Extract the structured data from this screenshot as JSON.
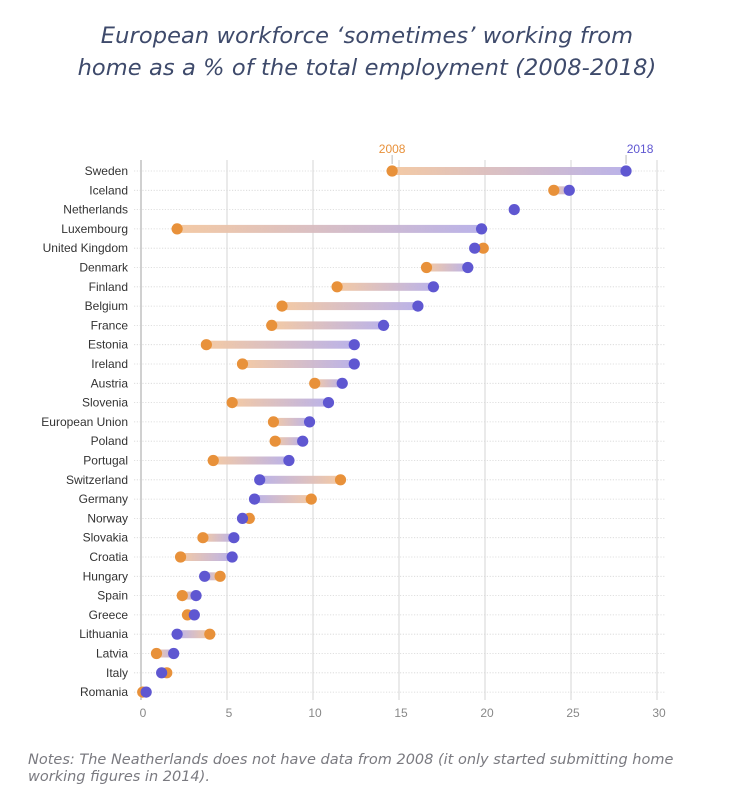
{
  "title": {
    "line1": "European workforce ‘sometimes’ working from",
    "line2": "home as a % of the total employment (2008-2018)"
  },
  "notes": "Notes: The Neatherlands does not have data from 2008 (it only started submitting home working figures in 2014).",
  "colors": {
    "y2008": "#E8913A",
    "y2018": "#5F57D1",
    "bar_from": "#F3C7A0",
    "bar_to": "#B7AFE8",
    "grid": "#e4e4e4",
    "row_guide": "#d6d6d6",
    "axis": "#b0b0b0"
  },
  "chart_data": {
    "type": "dumbbell",
    "title": "European workforce ‘sometimes’ working from home as a % of the total employment (2008-2018)",
    "xlabel": "",
    "ylabel": "",
    "xlim": [
      0,
      30
    ],
    "xticks": [
      0,
      5,
      10,
      15,
      20,
      25,
      30
    ],
    "grid": true,
    "legend": [
      {
        "name": "2008",
        "placement": "top, above first 2008 point"
      },
      {
        "name": "2018",
        "placement": "top, above first 2018 point"
      }
    ],
    "categories": [
      "Sweden",
      "Iceland",
      "Netherlands",
      "Luxembourg",
      "United Kingdom",
      "Denmark",
      "Finland",
      "Belgium",
      "France",
      "Estonia",
      "Ireland",
      "Austria",
      "Slovenia",
      "European Union",
      "Poland",
      "Portugal",
      "Switzerland",
      "Germany",
      "Norway",
      "Slovakia",
      "Croatia",
      "Hungary",
      "Spain",
      "Greece",
      "Lithuania",
      "Latvia",
      "Italy",
      "Romania"
    ],
    "series": [
      {
        "name": "2008",
        "values": [
          14.6,
          24.0,
          null,
          2.1,
          19.9,
          16.6,
          11.4,
          8.2,
          7.6,
          3.8,
          5.9,
          10.1,
          5.3,
          7.7,
          7.8,
          4.2,
          11.6,
          9.9,
          6.3,
          3.6,
          2.3,
          4.6,
          2.4,
          2.7,
          4.0,
          0.9,
          1.5,
          0.1
        ]
      },
      {
        "name": "2018",
        "values": [
          28.2,
          24.9,
          21.7,
          19.8,
          19.4,
          19.0,
          17.0,
          16.1,
          14.1,
          12.4,
          12.4,
          11.7,
          10.9,
          9.8,
          9.4,
          8.6,
          6.9,
          6.6,
          5.9,
          5.4,
          5.3,
          3.7,
          3.2,
          3.1,
          2.1,
          1.9,
          1.2,
          0.3
        ]
      }
    ]
  }
}
